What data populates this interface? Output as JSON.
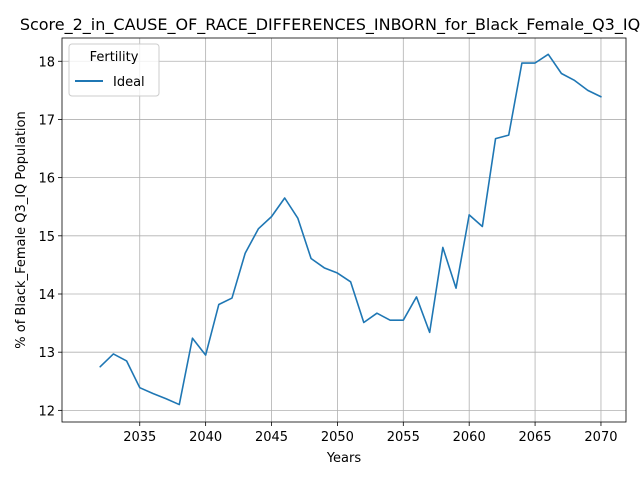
{
  "chart_data": {
    "type": "line",
    "title": "Score_2_in_CAUSE_OF_RACE_DIFFERENCES_INBORN_for_Black_Female_Q3_IQ",
    "xlabel": "Years",
    "ylabel": "% of Black_Female Q3_IQ Population",
    "xlim": [
      2029.1,
      2071.9
    ],
    "ylim": [
      11.8,
      18.4
    ],
    "x_ticks": [
      2035,
      2040,
      2045,
      2050,
      2055,
      2060,
      2065,
      2070
    ],
    "y_ticks": [
      12,
      13,
      14,
      15,
      16,
      17,
      18
    ],
    "grid": true,
    "legend": {
      "title": "Fertility",
      "position": "top-left"
    },
    "series": [
      {
        "name": "Ideal",
        "color": "#1f77b4",
        "x": [
          2032,
          2033,
          2034,
          2035,
          2036,
          2037,
          2038,
          2039,
          2040,
          2041,
          2042,
          2043,
          2044,
          2045,
          2046,
          2047,
          2048,
          2049,
          2050,
          2051,
          2052,
          2053,
          2054,
          2055,
          2056,
          2057,
          2058,
          2059,
          2060,
          2061,
          2062,
          2063,
          2064,
          2065,
          2066,
          2067,
          2068,
          2069,
          2070
        ],
        "values": [
          12.75,
          12.97,
          12.85,
          12.39,
          12.29,
          12.2,
          12.1,
          13.24,
          12.95,
          13.82,
          13.93,
          14.7,
          15.12,
          15.33,
          15.65,
          15.3,
          14.61,
          14.45,
          14.36,
          14.21,
          13.51,
          13.67,
          13.55,
          13.55,
          13.95,
          13.34,
          14.8,
          14.1,
          15.36,
          15.16,
          16.67,
          16.73,
          17.97,
          17.97,
          18.12,
          17.79,
          17.67,
          17.5,
          17.39
        ]
      }
    ]
  }
}
